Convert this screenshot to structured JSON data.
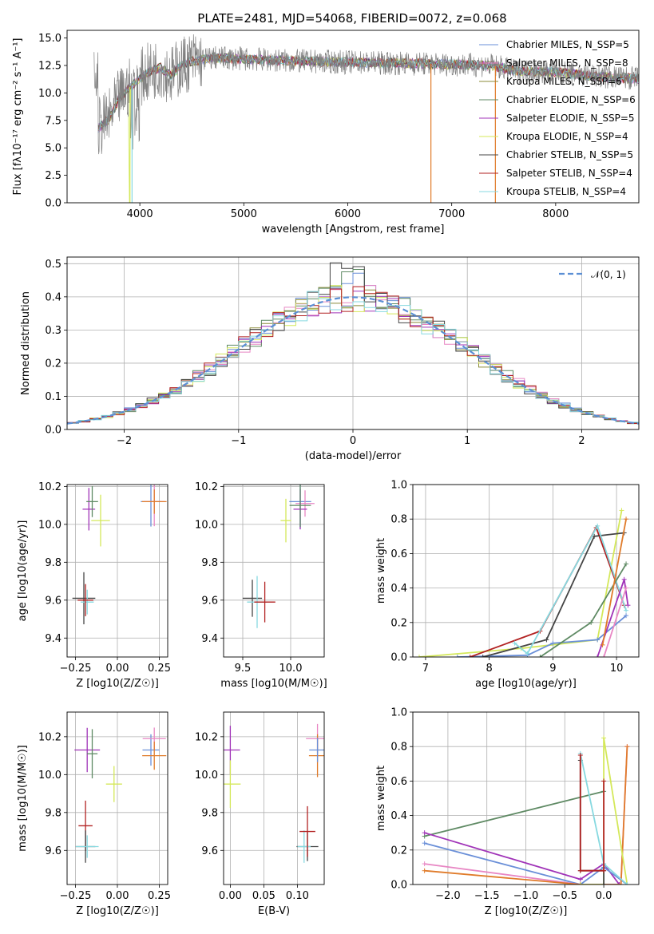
{
  "figure": {
    "title": "PLATE=2481, MJD=54068, FIBERID=0072, z=0.068"
  },
  "chart_data": [
    {
      "id": "spectrum",
      "type": "line",
      "xlabel": "wavelength [Angstrom, rest frame]",
      "ylabel": "Flux [fλ10⁻¹⁷ erg cm⁻² s⁻¹ A⁻¹]",
      "xlim": [
        3300,
        8800
      ],
      "ylim": [
        0,
        15.7
      ],
      "xticks": [
        4000,
        5000,
        6000,
        7000,
        8000
      ],
      "yticks": [
        0.0,
        2.5,
        5.0,
        7.5,
        10.0,
        12.5,
        15.0
      ],
      "legend_position": "upper-right",
      "series": [
        {
          "name": "Chabrier MILES, N_SSP=5",
          "color": "#6a8fd8"
        },
        {
          "name": "Salpeter MILES, N_SSP=8",
          "color": "#e887c4"
        },
        {
          "name": "Kroupa MILES, N_SSP=6",
          "color": "#8b8b3a"
        },
        {
          "name": "Chabrier ELODIE, N_SSP=6",
          "color": "#5f8a64"
        },
        {
          "name": "Salpeter ELODIE, N_SSP=5",
          "color": "#a033b8"
        },
        {
          "name": "Kroupa ELODIE, N_SSP=4",
          "color": "#d4e85a"
        },
        {
          "name": "Chabrier STELIB, N_SSP=5",
          "color": "#444444"
        },
        {
          "name": "Salpeter STELIB, N_SSP=4",
          "color": "#b22222"
        },
        {
          "name": "Kroupa STELIB, N_SSP=4",
          "color": "#87d9e0"
        }
      ],
      "data_color": "#808080",
      "model_envelope": {
        "x": [
          3600,
          3700,
          3800,
          3900,
          4000,
          4100,
          4200,
          4300,
          4400,
          4500,
          4700,
          5000,
          5500,
          6000,
          6500,
          7000,
          7400,
          7600,
          8000,
          8400,
          8800
        ],
        "y": [
          6.8,
          7.6,
          9.5,
          10.5,
          11.3,
          12.0,
          12.3,
          11.6,
          12.5,
          12.9,
          13.2,
          13.1,
          12.9,
          12.8,
          12.7,
          12.6,
          12.5,
          12.0,
          11.9,
          11.5,
          11.3
        ]
      }
    },
    {
      "id": "residuals",
      "type": "line",
      "xlabel": "(data-model)/error",
      "ylabel": "Normed distribution",
      "xlim": [
        -2.5,
        2.5
      ],
      "ylim": [
        0,
        0.52
      ],
      "xticks": [
        -2,
        -1,
        0,
        1,
        2
      ],
      "yticks": [
        0.0,
        0.1,
        0.2,
        0.3,
        0.4,
        0.5
      ],
      "legend_label": "𝒩(0, 1)",
      "gaussian_color": "#5b8fd4"
    },
    {
      "id": "age-vs-z",
      "type": "scatter",
      "xlabel": "Z [log10(Z/Z☉)]",
      "ylabel": "age [log10(age/yr)]",
      "xlim": [
        -0.3,
        0.3
      ],
      "ylim": [
        9.3,
        10.21
      ],
      "xticks": [
        -0.25,
        0.0,
        0.25
      ],
      "yticks": [
        9.4,
        9.6,
        9.8,
        10.0,
        10.2
      ],
      "points": [
        {
          "x": -0.17,
          "y": 10.08,
          "color": "#a033b8"
        },
        {
          "x": -0.15,
          "y": 10.12,
          "color": "#5f8a64"
        },
        {
          "x": 0.2,
          "y": 10.12,
          "color": "#6a8fd8"
        },
        {
          "x": 0.22,
          "y": 10.12,
          "color": "#e887c4"
        },
        {
          "x": 0.22,
          "y": 10.12,
          "color": "#e07b2a"
        },
        {
          "x": -0.1,
          "y": 10.02,
          "color": "#d4e85a"
        },
        {
          "x": -0.2,
          "y": 9.61,
          "color": "#444444"
        },
        {
          "x": -0.18,
          "y": 9.59,
          "color": "#87d9e0"
        },
        {
          "x": -0.19,
          "y": 9.6,
          "color": "#b22222"
        }
      ]
    },
    {
      "id": "age-vs-mass",
      "type": "scatter",
      "xlabel": "mass [log10(M/M☉)]",
      "ylabel": "",
      "xlim": [
        9.3,
        10.35
      ],
      "ylim": [
        9.3,
        10.21
      ],
      "xticks": [
        9.5,
        10.0
      ],
      "yticks": [
        9.4,
        9.6,
        9.8,
        10.0,
        10.2
      ],
      "points": [
        {
          "x": 10.1,
          "y": 10.12,
          "color": "#6a8fd8"
        },
        {
          "x": 10.15,
          "y": 10.11,
          "color": "#e887c4"
        },
        {
          "x": 10.1,
          "y": 10.08,
          "color": "#a033b8"
        },
        {
          "x": 10.1,
          "y": 10.1,
          "color": "#5f8a64"
        },
        {
          "x": 9.95,
          "y": 10.02,
          "color": "#d4e85a"
        },
        {
          "x": 9.6,
          "y": 9.61,
          "color": "#444444"
        },
        {
          "x": 9.65,
          "y": 9.59,
          "color": "#87d9e0"
        },
        {
          "x": 9.73,
          "y": 9.59,
          "color": "#b22222"
        }
      ]
    },
    {
      "id": "mass-weight-vs-age",
      "type": "line",
      "xlabel": "age [log10(age/yr)]",
      "ylabel": "mass weight",
      "xlim": [
        6.8,
        10.35
      ],
      "ylim": [
        0,
        1.0
      ],
      "xticks": [
        7,
        8,
        9,
        10
      ],
      "yticks": [
        0.0,
        0.2,
        0.4,
        0.6,
        0.8,
        1.0
      ],
      "series": [
        {
          "color": "#d4e85a",
          "x": [
            6.9,
            8.5,
            9.7,
            10.08
          ],
          "y": [
            0.0,
            0.05,
            0.1,
            0.85
          ]
        },
        {
          "color": "#6a8fd8",
          "x": [
            7.5,
            8.6,
            9.0,
            9.7,
            10.15
          ],
          "y": [
            0.0,
            0.01,
            0.08,
            0.1,
            0.24
          ]
        },
        {
          "color": "#b22222",
          "x": [
            7.7,
            8.8,
            9.68,
            10.12
          ],
          "y": [
            0.0,
            0.15,
            0.75,
            0.3
          ]
        },
        {
          "color": "#444444",
          "x": [
            7.9,
            8.9,
            9.65,
            10.12
          ],
          "y": [
            0.0,
            0.1,
            0.7,
            0.72
          ]
        },
        {
          "color": "#87d9e0",
          "x": [
            8.4,
            8.6,
            9.7,
            10.15
          ],
          "y": [
            0.08,
            0.02,
            0.76,
            0.27
          ]
        },
        {
          "color": "#5f8a64",
          "x": [
            8.8,
            9.6,
            10.15
          ],
          "y": [
            0.0,
            0.2,
            0.54
          ]
        },
        {
          "color": "#a033b8",
          "x": [
            9.7,
            10.12,
            10.18
          ],
          "y": [
            0.0,
            0.45,
            0.3
          ]
        },
        {
          "color": "#e887c4",
          "x": [
            9.8,
            10.15
          ],
          "y": [
            0.0,
            0.4
          ]
        },
        {
          "color": "#e07b2a",
          "x": [
            9.78,
            10.15
          ],
          "y": [
            0.07,
            0.8
          ]
        }
      ]
    },
    {
      "id": "mass-vs-z",
      "type": "scatter",
      "xlabel": "Z [log10(Z/Z☉)]",
      "ylabel": "mass [log10(M/M☉)]",
      "xlim": [
        -0.3,
        0.3
      ],
      "ylim": [
        9.42,
        10.33
      ],
      "xticks": [
        -0.25,
        0.0,
        0.25
      ],
      "yticks": [
        9.6,
        9.8,
        10.0,
        10.2
      ],
      "points": [
        {
          "x": -0.18,
          "y": 10.13,
          "color": "#a033b8"
        },
        {
          "x": -0.15,
          "y": 10.11,
          "color": "#5f8a64"
        },
        {
          "x": 0.2,
          "y": 10.13,
          "color": "#6a8fd8"
        },
        {
          "x": 0.22,
          "y": 10.19,
          "color": "#e887c4"
        },
        {
          "x": 0.22,
          "y": 10.1,
          "color": "#e07b2a"
        },
        {
          "x": -0.02,
          "y": 9.95,
          "color": "#d4e85a"
        },
        {
          "x": -0.19,
          "y": 9.73,
          "color": "#b22222"
        },
        {
          "x": -0.19,
          "y": 9.62,
          "color": "#444444"
        },
        {
          "x": -0.18,
          "y": 9.62,
          "color": "#87d9e0"
        }
      ]
    },
    {
      "id": "mass-vs-ebv",
      "type": "scatter",
      "xlabel": "E(B-V)",
      "ylabel": "",
      "xlim": [
        -0.01,
        0.14
      ],
      "ylim": [
        9.42,
        10.33
      ],
      "xticks": [
        0.0,
        0.05,
        0.1
      ],
      "yticks": [
        9.6,
        9.8,
        10.0,
        10.2
      ],
      "points": [
        {
          "x": 0.0,
          "y": 10.13,
          "color": "#a033b8"
        },
        {
          "x": 0.0,
          "y": 9.95,
          "color": "#d4e85a"
        },
        {
          "x": 0.13,
          "y": 10.19,
          "color": "#e887c4"
        },
        {
          "x": 0.13,
          "y": 10.1,
          "color": "#e07b2a"
        },
        {
          "x": 0.13,
          "y": 10.13,
          "color": "#6a8fd8"
        },
        {
          "x": 0.115,
          "y": 9.62,
          "color": "#444444"
        },
        {
          "x": 0.11,
          "y": 9.62,
          "color": "#87d9e0"
        },
        {
          "x": 0.115,
          "y": 9.7,
          "color": "#b22222"
        }
      ]
    },
    {
      "id": "mass-weight-vs-z",
      "type": "line",
      "xlabel": "Z [log10(Z/Z☉)]",
      "ylabel": "mass weight",
      "xlim": [
        -2.45,
        0.45
      ],
      "ylim": [
        0,
        1.0
      ],
      "xticks": [
        -2.0,
        -1.5,
        -1.0,
        -0.5,
        0.0
      ],
      "yticks": [
        0.0,
        0.2,
        0.4,
        0.6,
        0.8,
        1.0
      ],
      "series": [
        {
          "color": "#5f8a64",
          "x": [
            -2.3,
            0.0
          ],
          "y": [
            0.28,
            0.54
          ]
        },
        {
          "color": "#a033b8",
          "x": [
            -2.3,
            -0.3,
            0.0,
            0.2
          ],
          "y": [
            0.3,
            0.03,
            0.12,
            0.0
          ]
        },
        {
          "color": "#6a8fd8",
          "x": [
            -2.3,
            -0.3,
            0.0,
            0.3
          ],
          "y": [
            0.24,
            0.0,
            0.1,
            0.0
          ]
        },
        {
          "color": "#e887c4",
          "x": [
            -2.3,
            -0.3,
            0.22,
            0.3
          ],
          "y": [
            0.12,
            0.0,
            0.0,
            0.8
          ]
        },
        {
          "color": "#e07b2a",
          "x": [
            -2.3,
            -0.3,
            0.22,
            0.3
          ],
          "y": [
            0.08,
            0.0,
            0.0,
            0.8
          ]
        },
        {
          "color": "#d4e85a",
          "x": [
            -0.3,
            0.0,
            0.0,
            0.3
          ],
          "y": [
            0.0,
            0.0,
            0.85,
            0.0
          ]
        },
        {
          "color": "#444444",
          "x": [
            -0.3,
            -0.3,
            0.0,
            0.0
          ],
          "y": [
            0.72,
            0.08,
            0.08,
            0.0
          ]
        },
        {
          "color": "#87d9e0",
          "x": [
            -0.3,
            0.0,
            0.3
          ],
          "y": [
            0.76,
            0.12,
            0.0
          ]
        },
        {
          "color": "#b22222",
          "x": [
            -0.3,
            -0.3,
            0.0,
            0.0
          ],
          "y": [
            0.75,
            0.08,
            0.08,
            0.6
          ]
        }
      ]
    }
  ]
}
